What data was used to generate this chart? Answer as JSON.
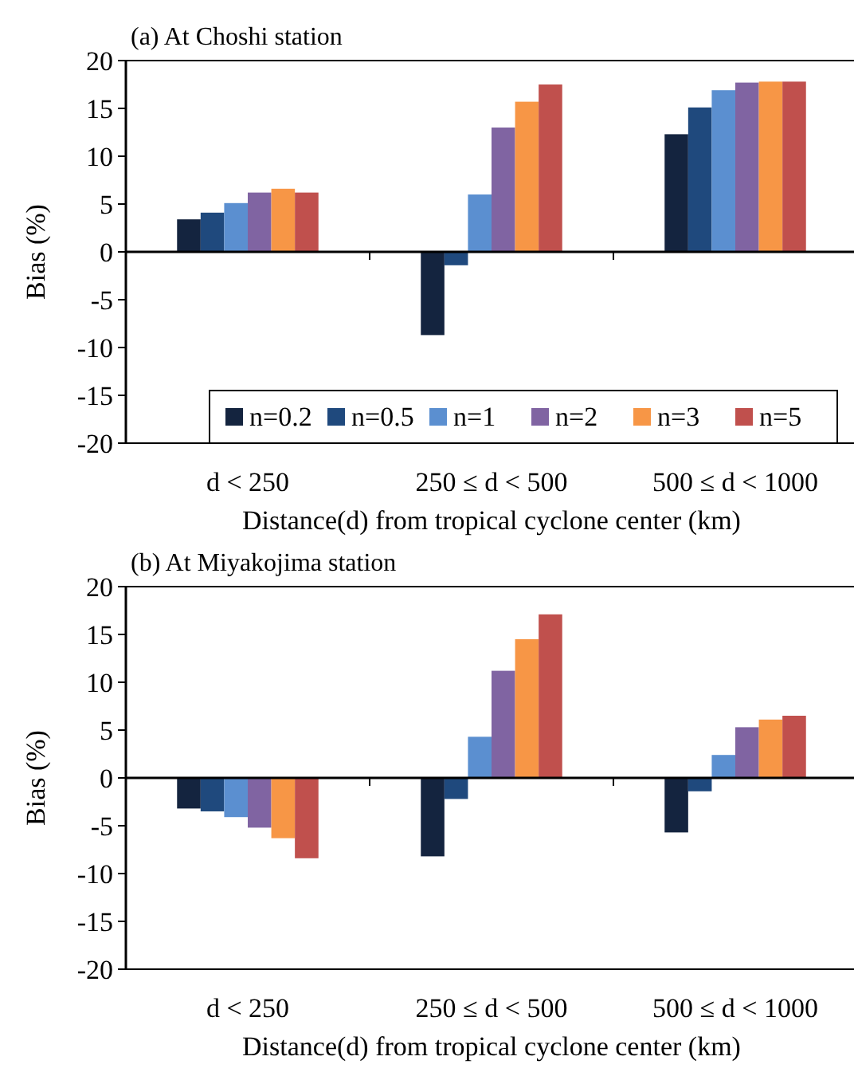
{
  "chart_data": [
    {
      "type": "bar",
      "title": "(a) At Choshi station",
      "xlabel": "Distance(d) from tropical cyclone center (km)",
      "ylabel": "Bias (%)",
      "categories": [
        "d < 250",
        "250 ≤ d < 500",
        "500 ≤ d < 1000"
      ],
      "ylim": [
        -20,
        20
      ],
      "yticks": [
        -20,
        -15,
        -10,
        -5,
        0,
        5,
        10,
        15,
        20
      ],
      "legend": "bottom",
      "series": [
        {
          "name": "n=0.2",
          "color": "#14243f",
          "values": [
            3.4,
            -8.7,
            12.3
          ]
        },
        {
          "name": "n=0.5",
          "color": "#1f497d",
          "values": [
            4.1,
            -1.4,
            15.1
          ]
        },
        {
          "name": "n=1",
          "color": "#5b8fd0",
          "values": [
            5.1,
            6.0,
            16.9
          ]
        },
        {
          "name": "n=2",
          "color": "#8064a2",
          "values": [
            6.2,
            13.0,
            17.7
          ]
        },
        {
          "name": "n=3",
          "color": "#f79646",
          "values": [
            6.6,
            15.7,
            17.8
          ]
        },
        {
          "name": "n=5",
          "color": "#c0504d",
          "values": [
            6.2,
            17.5,
            17.8
          ]
        }
      ]
    },
    {
      "type": "bar",
      "title": "(b) At Miyakojima station",
      "xlabel": "Distance(d) from tropical cyclone center (km)",
      "ylabel": "Bias (%)",
      "categories": [
        "d < 250",
        "250 ≤ d < 500",
        "500 ≤ d < 1000"
      ],
      "ylim": [
        -20,
        20
      ],
      "yticks": [
        -20,
        -15,
        -10,
        -5,
        0,
        5,
        10,
        15,
        20
      ],
      "series": [
        {
          "color": "#14243f",
          "values": [
            -3.2,
            -8.2,
            -5.7
          ]
        },
        {
          "color": "#1f497d",
          "values": [
            -3.5,
            -2.2,
            -1.4
          ]
        },
        {
          "color": "#5b8fd0",
          "values": [
            -4.1,
            4.3,
            2.4
          ]
        },
        {
          "color": "#8064a2",
          "values": [
            -5.2,
            11.2,
            5.3
          ]
        },
        {
          "color": "#f79646",
          "values": [
            -6.3,
            14.5,
            6.1
          ]
        },
        {
          "color": "#c0504d",
          "values": [
            -8.4,
            17.1,
            6.5
          ]
        }
      ]
    }
  ]
}
